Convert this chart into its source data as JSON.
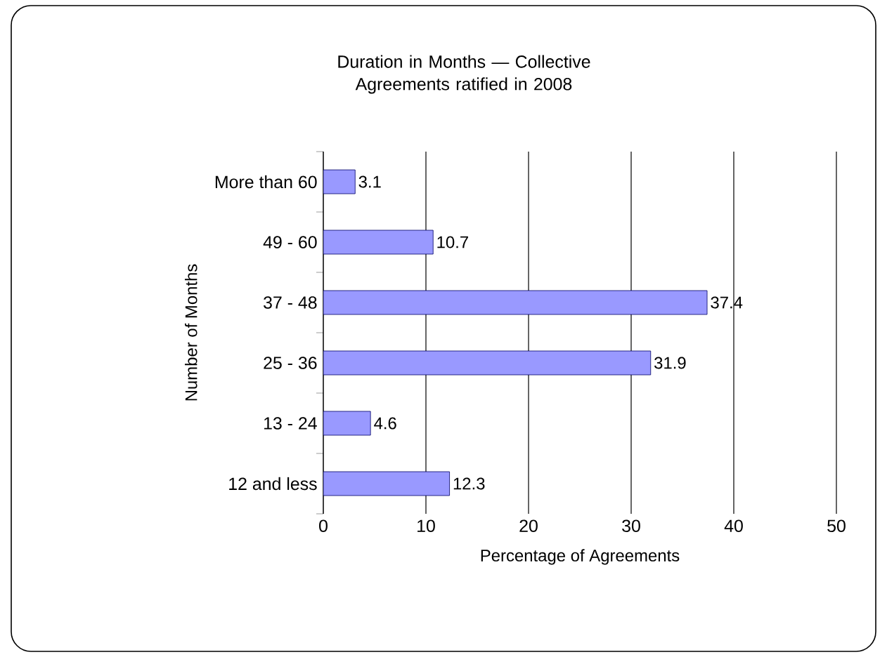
{
  "chart_data": {
    "type": "bar",
    "orientation": "horizontal",
    "title": "Duration in Months — Collective Agreements ratified in 2008",
    "xlabel": "Percentage of Agreements",
    "ylabel": "Number of Months",
    "categories": [
      "More than 60",
      "49 - 60",
      "37 - 48",
      "25 - 36",
      "13 - 24",
      "12 and less"
    ],
    "values": [
      3.1,
      10.7,
      37.4,
      31.9,
      4.6,
      12.3
    ],
    "color": "#9999ff",
    "xlim": [
      0,
      50
    ],
    "xticks": [
      0,
      10,
      20,
      30,
      40,
      50
    ],
    "grid": "x",
    "data_labels": true
  }
}
